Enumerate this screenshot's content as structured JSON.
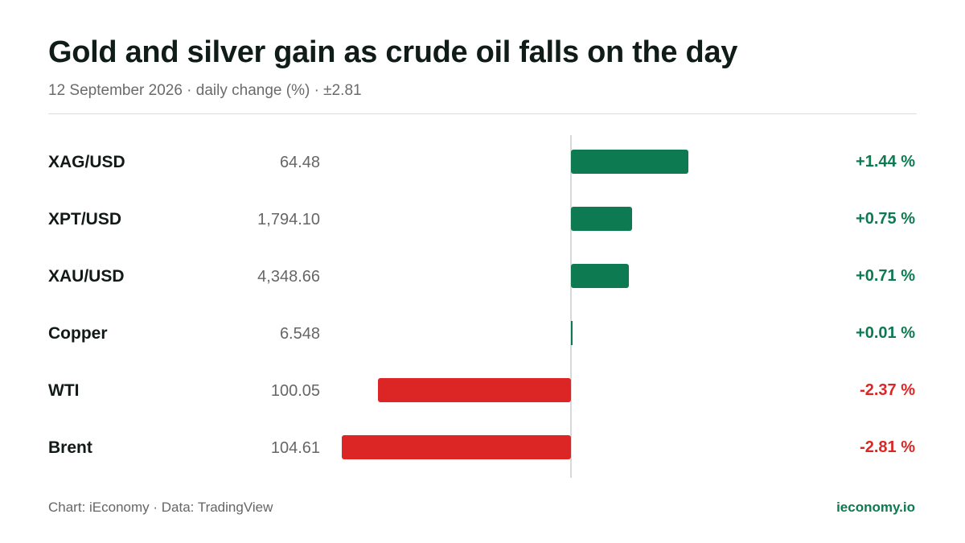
{
  "header": {
    "title": "Gold and silver gain as crude oil falls on the day",
    "subtitle": "12 September 2026 · daily change (%) · ±2.81"
  },
  "colors": {
    "positive": "#0d7a52",
    "negative": "#dc2626",
    "title": "#0f1c17",
    "muted": "#666666",
    "axis": "#d9d9d9"
  },
  "chart_data": {
    "type": "bar",
    "orientation": "horizontal",
    "categories": [
      "XAG/USD",
      "XPT/USD",
      "XAU/USD",
      "Copper",
      "WTI",
      "Brent"
    ],
    "prices": [
      "64.48",
      "1,794.10",
      "4,348.66",
      "6.548",
      "100.05",
      "104.61"
    ],
    "values": [
      1.44,
      0.75,
      0.71,
      0.01,
      -2.37,
      -2.81
    ],
    "value_labels": [
      "+1.44 %",
      "+0.75 %",
      "+0.71 %",
      "+0.01 %",
      "-2.37 %",
      "-2.81 %"
    ],
    "xlim": [
      -2.81,
      2.81
    ],
    "grid": false,
    "legend": "none"
  },
  "footer": {
    "source": "Chart: iEconomy · Data: TradingView",
    "brand": "ieconomy.io"
  }
}
